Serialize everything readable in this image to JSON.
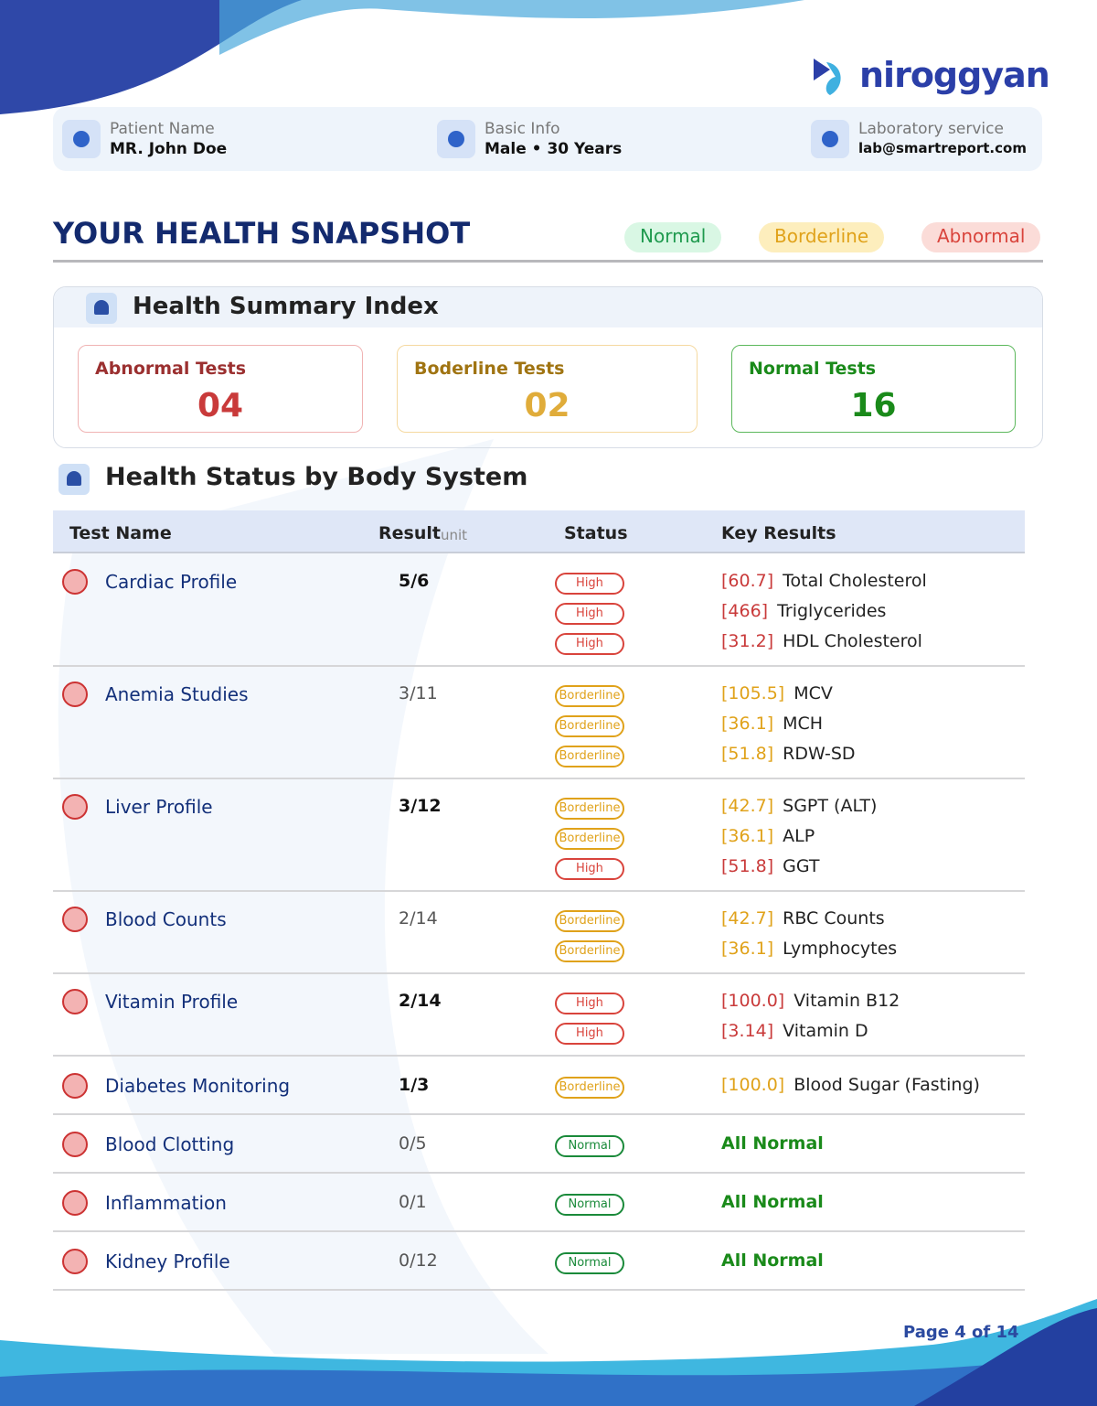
{
  "brand": "niroggyan",
  "patient": [
    {
      "label": "Patient Name",
      "value": "MR. John Doe"
    },
    {
      "label": "Basic Info",
      "value": "Male • 30 Years"
    },
    {
      "label": "Laboratory service",
      "value": "lab@smartreport.com"
    }
  ],
  "title": "YOUR HEALTH SNAPSHOT",
  "legend": [
    {
      "label": "Normal",
      "color": "#1f9a4e",
      "bg": "#d9f7e4"
    },
    {
      "label": "Borderline",
      "color": "#e0a21a",
      "bg": "#fdeebd"
    },
    {
      "label": "Abnormal",
      "color": "#d9443c",
      "bg": "#fbdcd8"
    }
  ],
  "summary": {
    "title": "Health Summary Index",
    "cards": [
      {
        "label": "Abnormal Tests",
        "value": "04",
        "color": "#c93a3a",
        "label_color": "#9b3030",
        "border": "#f0b3b3"
      },
      {
        "label": "Boderline Tests",
        "value": "02",
        "color": "#e0ac3a",
        "label_color": "#a07412",
        "border": "#f5d9a0"
      },
      {
        "label": "Normal Tests",
        "value": "16",
        "color": "#1a8a1a",
        "label_color": "#1a8a1a",
        "border": "#5cb85c"
      }
    ]
  },
  "systems": {
    "title": "Health Status by Body System",
    "columns": {
      "name": "Test Name",
      "result": "Result",
      "unit": "unit",
      "status": "Status",
      "key": "Key Results"
    },
    "rows": [
      {
        "name": "Cardiac Profile",
        "result": "5/6",
        "result_bold": true,
        "statuses": [
          {
            "label": "High",
            "color": "#d9443c"
          },
          {
            "label": "High",
            "color": "#d9443c"
          },
          {
            "label": "High",
            "color": "#d9443c"
          }
        ],
        "key_results": [
          {
            "value": "[60.7]",
            "name": "Total Cholesterol",
            "color": "#c93a3a"
          },
          {
            "value": "[466]",
            "name": "Triglycerides",
            "color": "#c93a3a"
          },
          {
            "value": "[31.2]",
            "name": "HDL Cholesterol",
            "color": "#c93a3a"
          }
        ]
      },
      {
        "name": "Anemia Studies",
        "result": "3/11",
        "result_bold": false,
        "statuses": [
          {
            "label": "Borderline",
            "color": "#e0a21a"
          },
          {
            "label": "Borderline",
            "color": "#e0a21a"
          },
          {
            "label": "Borderline",
            "color": "#e0a21a"
          }
        ],
        "key_results": [
          {
            "value": "[105.5]",
            "name": "MCV",
            "color": "#e0a21a"
          },
          {
            "value": "[36.1]",
            "name": "MCH",
            "color": "#e0a21a"
          },
          {
            "value": "[51.8]",
            "name": "RDW-SD",
            "color": "#e0a21a"
          }
        ]
      },
      {
        "name": "Liver Profile",
        "result": "3/12",
        "result_bold": true,
        "statuses": [
          {
            "label": "Borderline",
            "color": "#e0a21a"
          },
          {
            "label": "Borderline",
            "color": "#e0a21a"
          },
          {
            "label": "High",
            "color": "#d9443c"
          }
        ],
        "key_results": [
          {
            "value": "[42.7]",
            "name": "SGPT (ALT)",
            "color": "#e0a21a"
          },
          {
            "value": "[36.1]",
            "name": "ALP",
            "color": "#e0a21a"
          },
          {
            "value": "[51.8]",
            "name": "GGT",
            "color": "#c93a3a"
          }
        ]
      },
      {
        "name": "Blood Counts",
        "result": "2/14",
        "result_bold": false,
        "statuses": [
          {
            "label": "Borderline",
            "color": "#e0a21a"
          },
          {
            "label": "Borderline",
            "color": "#e0a21a"
          }
        ],
        "key_results": [
          {
            "value": "[42.7]",
            "name": "RBC Counts",
            "color": "#e0a21a"
          },
          {
            "value": "[36.1]",
            "name": "Lymphocytes",
            "color": "#e0a21a"
          }
        ]
      },
      {
        "name": "Vitamin Profile",
        "result": "2/14",
        "result_bold": true,
        "statuses": [
          {
            "label": "High",
            "color": "#d9443c"
          },
          {
            "label": "High",
            "color": "#d9443c"
          }
        ],
        "key_results": [
          {
            "value": "[100.0]",
            "name": "Vitamin B12",
            "color": "#c93a3a"
          },
          {
            "value": "[3.14]",
            "name": "Vitamin D",
            "color": "#c93a3a"
          }
        ]
      },
      {
        "name": "Diabetes Monitoring",
        "result": "1/3",
        "result_bold": true,
        "statuses": [
          {
            "label": "Borderline",
            "color": "#e0a21a"
          }
        ],
        "key_results": [
          {
            "value": "[100.0]",
            "name": "Blood Sugar (Fasting)",
            "color": "#e0a21a"
          }
        ]
      },
      {
        "name": "Blood Clotting",
        "result": "0/5",
        "result_bold": false,
        "statuses": [
          {
            "label": "Normal",
            "color": "#1a8a3a"
          }
        ],
        "key_results": [
          {
            "name": "All Normal",
            "color": "#1a8a1a"
          }
        ]
      },
      {
        "name": "Inflammation",
        "result": "0/1",
        "result_bold": false,
        "statuses": [
          {
            "label": "Normal",
            "color": "#1a8a3a"
          }
        ],
        "key_results": [
          {
            "name": "All Normal",
            "color": "#1a8a1a"
          }
        ]
      },
      {
        "name": "Kidney Profile",
        "result": "0/12",
        "result_bold": false,
        "statuses": [
          {
            "label": "Normal",
            "color": "#1a8a3a"
          }
        ],
        "key_results": [
          {
            "name": "All Normal",
            "color": "#1a8a1a"
          }
        ]
      }
    ]
  },
  "footer": "Page 4 of 14"
}
